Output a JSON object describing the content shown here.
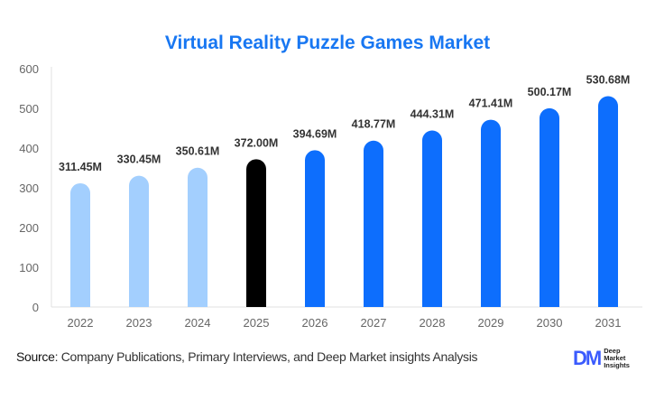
{
  "chart_data": {
    "type": "bar",
    "title": "Virtual Reality Puzzle Games Market",
    "categories": [
      "2022",
      "2023",
      "2024",
      "2025",
      "2026",
      "2027",
      "2028",
      "2029",
      "2030",
      "2031"
    ],
    "values": [
      311.45,
      330.45,
      350.61,
      372.0,
      394.69,
      418.77,
      444.31,
      471.41,
      500.17,
      530.68
    ],
    "data_labels": [
      "311.45M",
      "330.45M",
      "350.61M",
      "372.00M",
      "394.69M",
      "418.77M",
      "444.31M",
      "471.41M",
      "500.17M",
      "530.68M"
    ],
    "ylim": [
      0,
      600
    ],
    "yticks": [
      "0",
      "100",
      "200",
      "300",
      "400",
      "500",
      "600"
    ],
    "grid": false,
    "bar_colors": [
      "#a3cffe",
      "#a3cffe",
      "#a3cffe",
      "#000000",
      "#0d6efd",
      "#0d6efd",
      "#0d6efd",
      "#0d6efd",
      "#0d6efd",
      "#0d6efd"
    ]
  },
  "footer": {
    "source_label": "Source",
    "source_text": ": Company Publications, Primary Interviews, and Deep Market insights Analysis"
  },
  "logo": {
    "mark": "DM",
    "line1": "Deep",
    "line2": "Market",
    "line3": "Insights"
  }
}
